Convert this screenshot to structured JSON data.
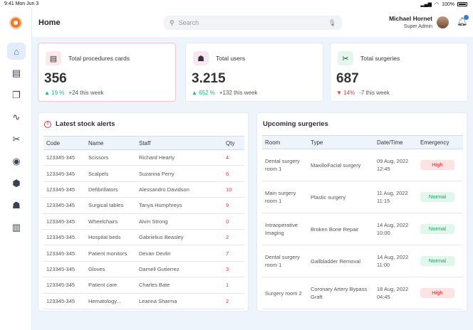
{
  "statusbar": {
    "time": "9:41  Mon Jun 3",
    "battery": "100%"
  },
  "sidebar": {
    "items": [
      {
        "name": "home",
        "icon": "home-icon",
        "glyph": "⌂"
      },
      {
        "name": "cards",
        "icon": "id-card-icon",
        "glyph": "▤"
      },
      {
        "name": "procedures",
        "icon": "book-icon",
        "glyph": "❐"
      },
      {
        "name": "activity",
        "icon": "pulse-icon",
        "glyph": "∿"
      },
      {
        "name": "surgeries",
        "icon": "scissors-icon",
        "glyph": "✂"
      },
      {
        "name": "messages",
        "icon": "chat-icon",
        "glyph": "◉"
      },
      {
        "name": "stock",
        "icon": "box-icon",
        "glyph": "⬢"
      },
      {
        "name": "users",
        "icon": "users-icon",
        "glyph": "☗"
      },
      {
        "name": "reports",
        "icon": "bar-chart-icon",
        "glyph": "▥"
      }
    ]
  },
  "header": {
    "title": "Home",
    "search_placeholder": "Search",
    "user_name": "Michael Hornet",
    "user_role": "Super Admin"
  },
  "stats": [
    {
      "label": "Total procedures cards",
      "value": "356",
      "pct": "19 %",
      "arrow": "▲",
      "trend": "up",
      "delta": "+24 this week",
      "icon_bg": "#fde8ec",
      "glyph": "▤"
    },
    {
      "label": "Total users",
      "value": "3.215",
      "pct": "652 %",
      "arrow": "▲",
      "trend": "up",
      "delta": "+132 this week",
      "icon_bg": "#f9e6f4",
      "glyph": "☗"
    },
    {
      "label": "Total surgeries",
      "value": "687",
      "pct": "14%",
      "arrow": "▼",
      "trend": "down",
      "delta": "-7 this week",
      "icon_bg": "#e4f7ef",
      "glyph": "✂"
    }
  ],
  "stock": {
    "title": "Latest stock alerts",
    "columns": [
      "Code",
      "Name",
      "Staff",
      "Qty"
    ],
    "rows": [
      [
        "123345-345",
        "Scissors",
        "Richard Hearty",
        "4"
      ],
      [
        "123345-345",
        "Scalpels",
        "Suzanna Perry",
        "6"
      ],
      [
        "123345-345",
        "Defibrillators",
        "Alessandro Davidson",
        "10"
      ],
      [
        "123345-345",
        "Surgical tables",
        "Tanya Humphreys",
        "9"
      ],
      [
        "123345-345",
        "Wheelchairs",
        "Alvin Strong",
        "0"
      ],
      [
        "123345-345",
        "Hospital beds",
        "Gabrielius Beasley",
        "2"
      ],
      [
        "123345-345",
        "Patient monitors",
        "Devan Devlin",
        "7"
      ],
      [
        "123345-345",
        "Gloves",
        "Darnell Gutierrez",
        "3"
      ],
      [
        "123345-345",
        "Patient care",
        "Charles Bate",
        "1"
      ],
      [
        "123345-345",
        "Hematology...",
        "Leanna Sharma",
        "2"
      ]
    ]
  },
  "surgeries": {
    "title": "Upcoming surgeries",
    "columns": [
      "Room",
      "Type",
      "Date/Time",
      "Emergency"
    ],
    "rows": [
      {
        "room": "Dental surgery room 1",
        "type": "MaxilloFacial surgery",
        "date": "09 Aug, 2022",
        "time": "12:45",
        "emergency": "High",
        "level": "high"
      },
      {
        "room": "Main surgery room 1",
        "type": "Plastic surgery",
        "date": "11 Aug, 2022",
        "time": "11:15",
        "emergency": "Normal",
        "level": "normal"
      },
      {
        "room": "Intraoperative Imaging",
        "type": "Broken Bone Repair",
        "date": "14 Aug, 2022",
        "time": "10:00",
        "emergency": "Normal",
        "level": "normal"
      },
      {
        "room": "Dental surgery room 1",
        "type": "Gallbladder Removal",
        "date": "14 Aug, 2022",
        "time": "11:00",
        "emergency": "Normal",
        "level": "normal"
      },
      {
        "room": "Surgery room 2",
        "type": "Coronary Artery Bypass Graft",
        "date": "18 Aug, 2022",
        "time": "04:45",
        "emergency": "High",
        "level": "high"
      }
    ]
  }
}
